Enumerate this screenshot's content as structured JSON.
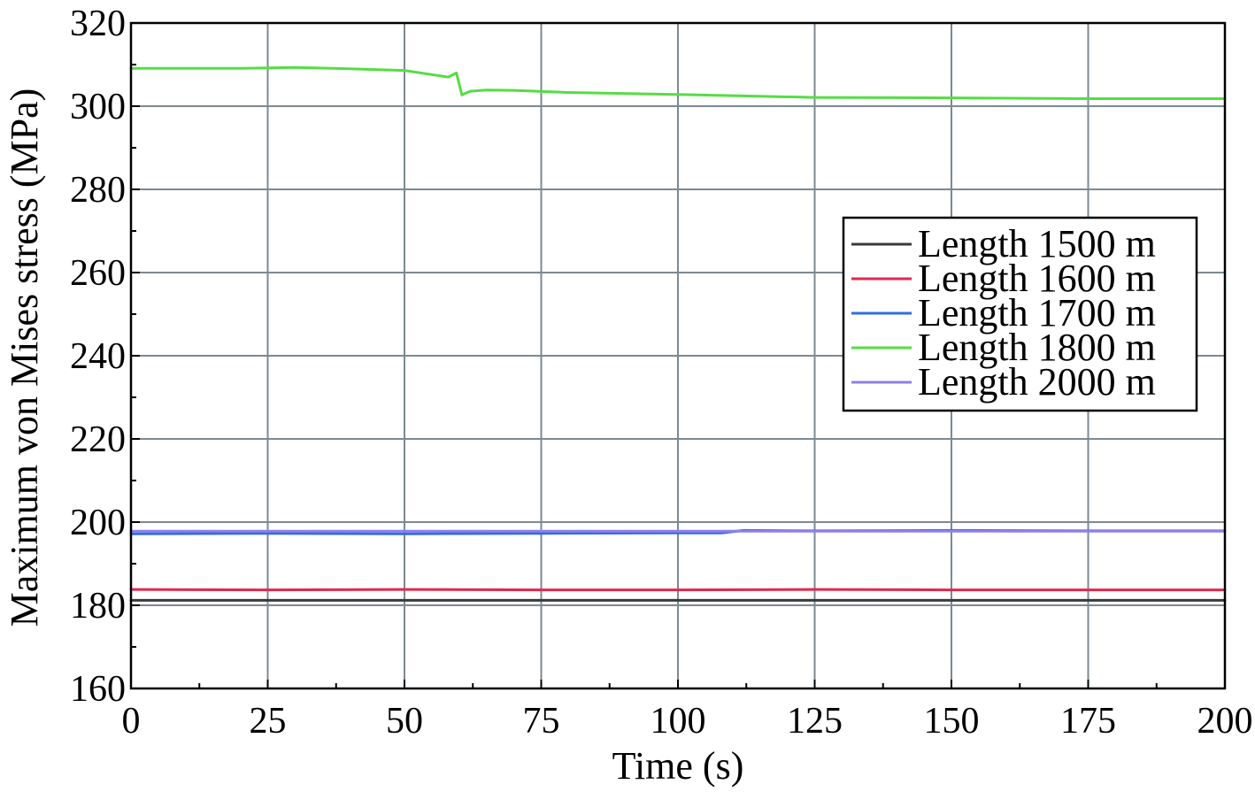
{
  "chart_data": {
    "type": "line",
    "xlabel": "Time (s)",
    "ylabel": "Maximum von Mises stress (MPa)",
    "xlim": [
      0,
      200
    ],
    "ylim": [
      160,
      320
    ],
    "xticks": [
      0,
      25,
      50,
      75,
      100,
      125,
      150,
      175,
      200
    ],
    "yticks": [
      160,
      180,
      200,
      220,
      240,
      260,
      280,
      300,
      320
    ],
    "grid": true,
    "legend_position": "right",
    "series": [
      {
        "name": "Length 1500 m",
        "color": "#3a3a3a",
        "x": [
          0,
          200
        ],
        "y": [
          181.2,
          181.2
        ]
      },
      {
        "name": "Length 1600 m",
        "color": "#e0284e",
        "x": [
          0,
          25,
          50,
          75,
          100,
          125,
          150,
          175,
          200
        ],
        "y": [
          183.8,
          183.7,
          183.8,
          183.7,
          183.7,
          183.8,
          183.7,
          183.7,
          183.7
        ]
      },
      {
        "name": "Length 1700 m",
        "color": "#2f6fe0",
        "x": [
          0,
          25,
          50,
          75,
          100,
          108,
          112,
          125,
          150,
          175,
          200
        ],
        "y": [
          197.2,
          197.3,
          197.2,
          197.3,
          197.4,
          197.4,
          198.0,
          197.9,
          198.0,
          197.9,
          197.9
        ]
      },
      {
        "name": "Length 1800 m",
        "color": "#55dd44",
        "x": [
          0,
          10,
          20,
          30,
          40,
          50,
          55,
          58,
          59.5,
          60.5,
          62,
          65,
          70,
          80,
          100,
          125,
          150,
          175,
          200
        ],
        "y": [
          309.1,
          309.1,
          309.1,
          309.3,
          309.0,
          308.6,
          307.6,
          307.0,
          308.0,
          302.7,
          303.6,
          303.9,
          303.8,
          303.3,
          302.8,
          302.1,
          302.0,
          301.8,
          301.8
        ]
      },
      {
        "name": "Length 2000 m",
        "color": "#8f7fe8",
        "x": [
          0,
          50,
          100,
          150,
          200
        ],
        "y": [
          197.8,
          197.8,
          197.8,
          197.8,
          197.8
        ]
      }
    ]
  }
}
